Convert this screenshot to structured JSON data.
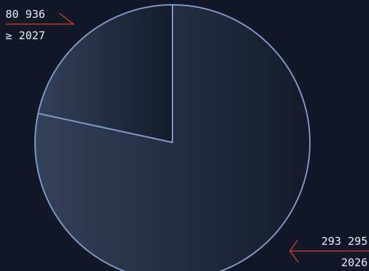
{
  "chart_data": {
    "type": "pie",
    "categories": [
      "2026",
      "≥ 2027"
    ],
    "values": [
      293295,
      80936
    ],
    "value_labels": [
      "293 295",
      "80 936"
    ],
    "start_angle_deg": 0,
    "direction": "clockwise",
    "legend": "none",
    "colors": {
      "background": "#121828",
      "slice_fill_light": "#33415a",
      "slice_fill_dark": "#151b2b",
      "slice_stroke": "#7f9ccb",
      "leader_line": "#e0442f",
      "label_text": "#e8ecf2"
    }
  }
}
